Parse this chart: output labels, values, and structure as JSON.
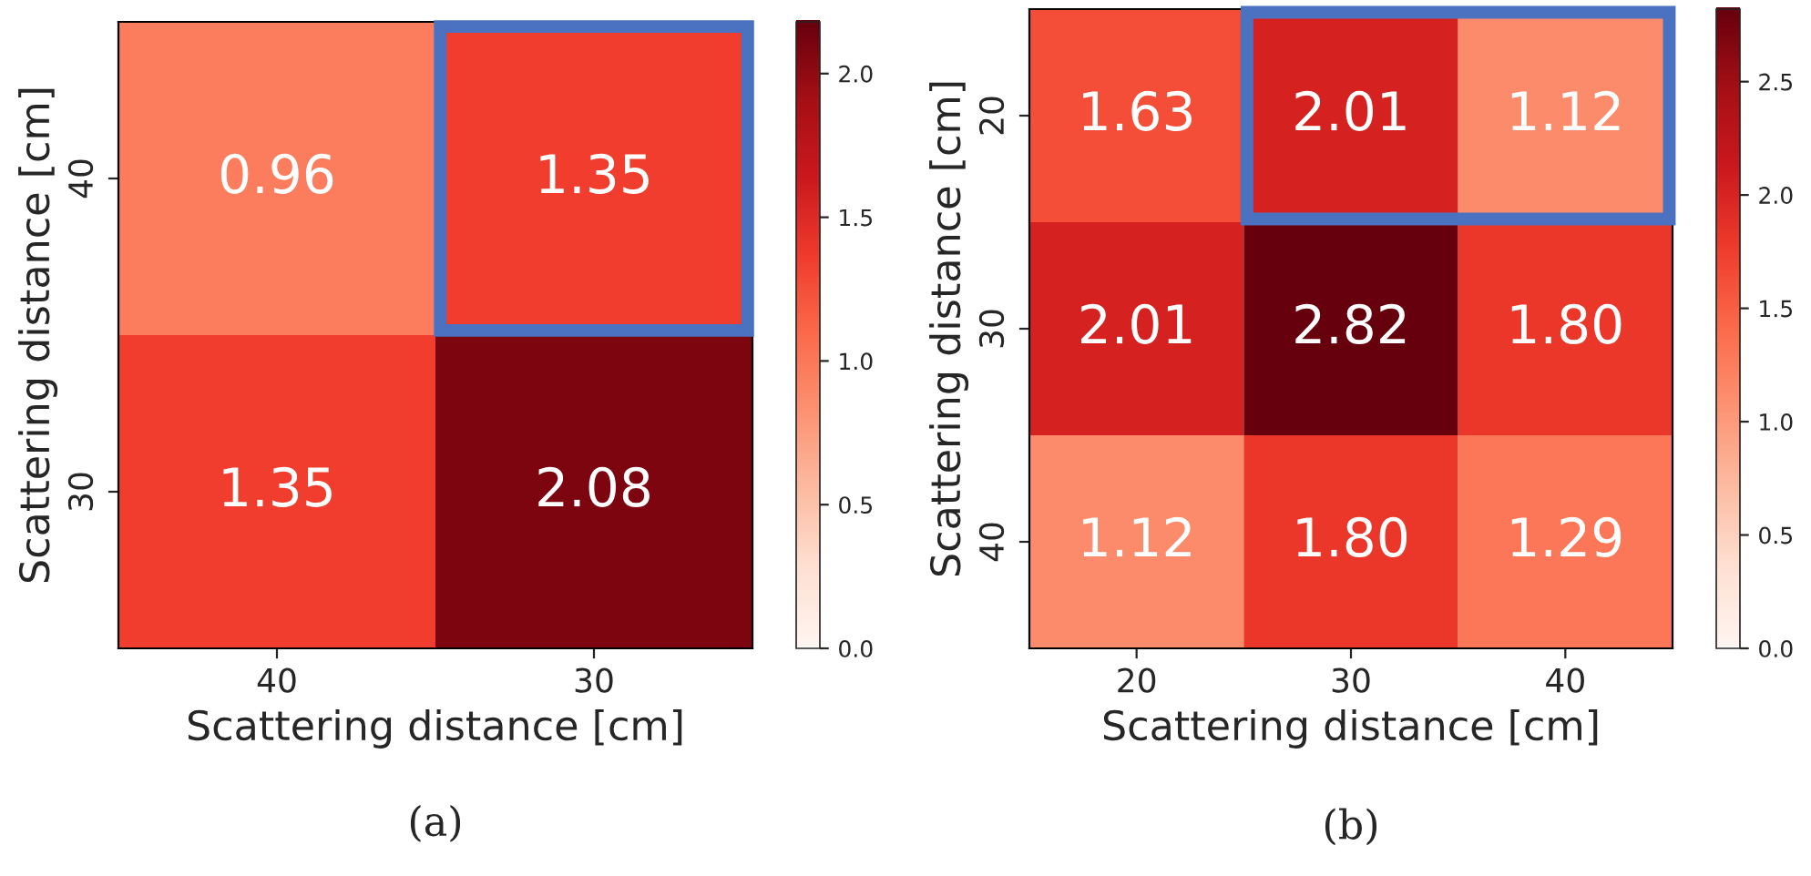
{
  "chart_data": [
    {
      "type": "heatmap",
      "xlabel": "Scattering distance [cm]",
      "ylabel": "Scattering distance [cm]",
      "categories": [
        "40",
        "30"
      ],
      "y_categories": [
        "40",
        "30"
      ],
      "cells": [
        [
          0.96,
          1.35
        ],
        [
          1.35,
          2.08
        ]
      ],
      "cell_labels": [
        [
          "0.96",
          "1.35"
        ],
        [
          "1.35",
          "2.08"
        ]
      ],
      "clim": [
        0,
        2.18
      ],
      "cticks": [
        {
          "value": 0,
          "label": "0.0"
        },
        {
          "value": 0.5,
          "label": "0.5"
        },
        {
          "value": 1,
          "label": "1.0"
        },
        {
          "value": 1.5,
          "label": "1.5"
        },
        {
          "value": 2,
          "label": "2.0"
        }
      ],
      "annotations": [
        "(a)"
      ]
    },
    {
      "type": "heatmap",
      "xlabel": "Scattering distance [cm]",
      "ylabel": "Scattering distance [cm]",
      "categories": [
        "20",
        "30",
        "40"
      ],
      "y_categories": [
        "20",
        "30",
        "40"
      ],
      "cells": [
        [
          1.63,
          2.01,
          1.12
        ],
        [
          2.01,
          2.82,
          1.8
        ],
        [
          1.12,
          1.8,
          1.29
        ]
      ],
      "cell_labels": [
        [
          "1.63",
          "2.01",
          "1.12"
        ],
        [
          "2.01",
          "2.82",
          "1.80"
        ],
        [
          "1.12",
          "1.80",
          "1.29"
        ]
      ],
      "clim": [
        0,
        2.82
      ],
      "cticks": [
        {
          "value": 0,
          "label": "0.0"
        },
        {
          "value": 0.5,
          "label": "0.5"
        },
        {
          "value": 1,
          "label": "1.0"
        },
        {
          "value": 1.5,
          "label": "1.5"
        },
        {
          "value": 2,
          "label": "2.0"
        },
        {
          "value": 2.5,
          "label": "2.5"
        }
      ],
      "annotations": [
        "(b)"
      ]
    }
  ]
}
